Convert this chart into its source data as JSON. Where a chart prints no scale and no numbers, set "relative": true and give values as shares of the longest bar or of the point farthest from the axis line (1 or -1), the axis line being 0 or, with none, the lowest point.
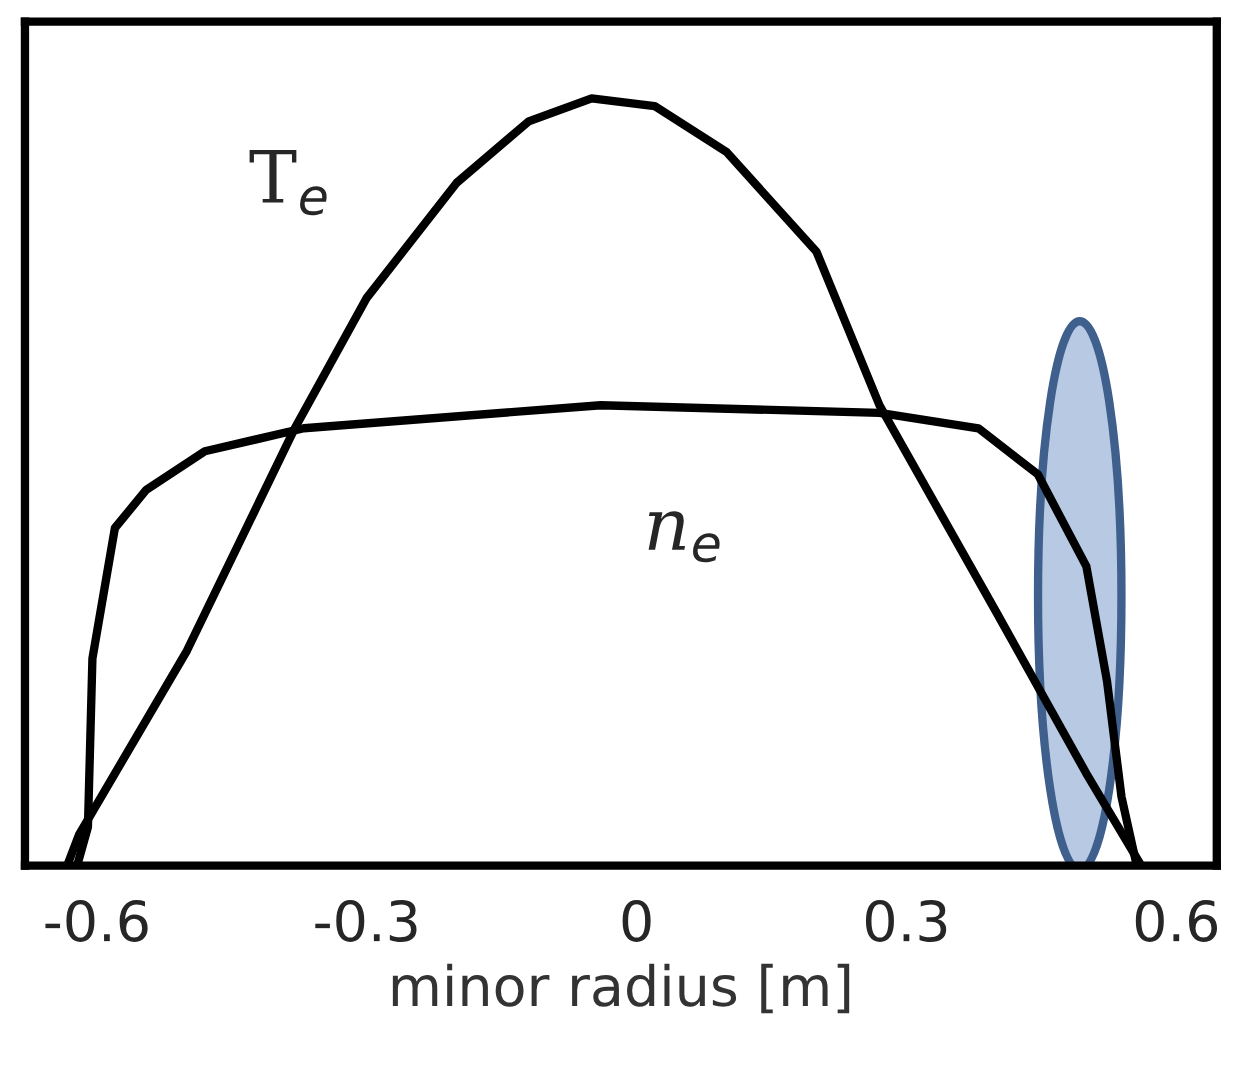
{
  "chart_data": {
    "type": "line",
    "relative": true,
    "xlabel": "minor radius [m]",
    "xlim": [
      -0.68,
      0.645
    ],
    "xticks": [
      -0.6,
      -0.3,
      0,
      0.3,
      0.6
    ],
    "tick_labels": "x",
    "grid": false,
    "legend": false,
    "marker": "none",
    "line_style": "solid",
    "series": [
      {
        "name": "T$_{e}$",
        "color": "#000000",
        "x": [
          -0.633,
          -0.62,
          -0.5,
          -0.38,
          -0.3,
          -0.2,
          -0.12,
          -0.05,
          0.02,
          0.1,
          0.2,
          0.27,
          0.4,
          0.5,
          0.561
        ],
        "values": [
          0,
          0.04,
          0.28,
          0.57,
          0.74,
          0.89,
          0.97,
          1.0,
          0.99,
          0.93,
          0.8,
          0.6,
          0.33,
          0.12,
          0
        ]
      },
      {
        "name": "n$_{e}$",
        "color": "#000000",
        "x": [
          -0.622,
          -0.61,
          -0.605,
          -0.58,
          -0.545,
          -0.48,
          -0.37,
          -0.04,
          0.27,
          0.38,
          0.446,
          0.5,
          0.523,
          0.539,
          0.556
        ],
        "values": [
          0,
          0.05,
          0.27,
          0.44,
          0.49,
          0.54,
          0.57,
          0.6,
          0.59,
          0.57,
          0.51,
          0.39,
          0.24,
          0.09,
          0
        ]
      }
    ]
  }
}
